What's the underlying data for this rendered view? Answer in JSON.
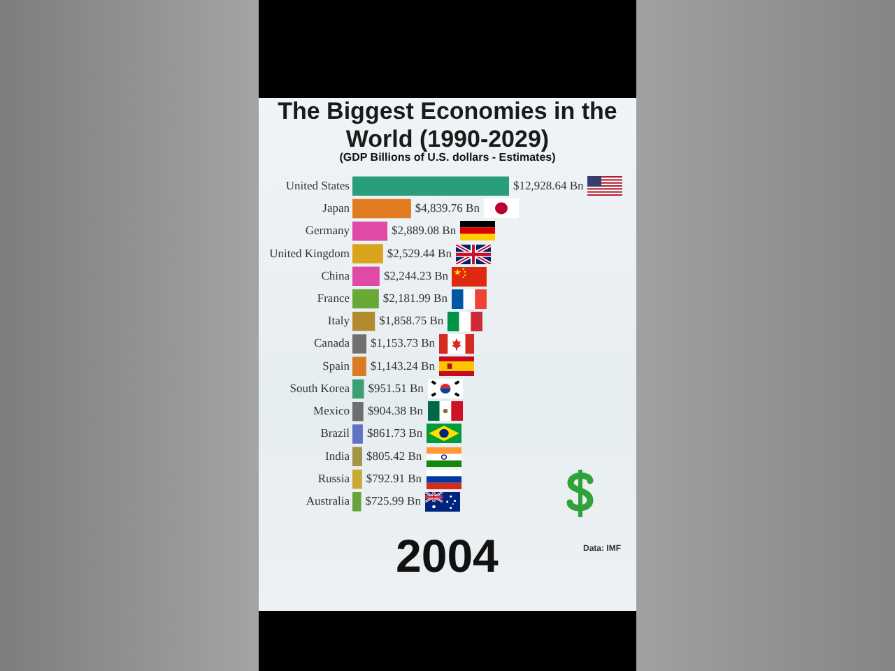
{
  "chart_data": {
    "type": "bar",
    "orientation": "horizontal",
    "title": "The Biggest Economies in the World (1990-2029)",
    "subtitle": "(GDP Billions of U.S. dollars - Estimates)",
    "categories": [
      "United States",
      "Japan",
      "Germany",
      "United Kingdom",
      "China",
      "France",
      "Italy",
      "Canada",
      "Spain",
      "South Korea",
      "Mexico",
      "Brazil",
      "India",
      "Russia",
      "Australia"
    ],
    "values": [
      12928.64,
      4839.76,
      2889.08,
      2529.44,
      2244.23,
      2181.99,
      1858.75,
      1153.73,
      1143.24,
      951.51,
      904.38,
      861.73,
      805.42,
      792.91,
      725.99
    ],
    "colors": [
      "#2a9d7c",
      "#e07b22",
      "#e04aa6",
      "#d9a41c",
      "#e04aa6",
      "#6aa836",
      "#b08a2c",
      "#707070",
      "#d97a24",
      "#3aa072",
      "#6e6e6e",
      "#6272c2",
      "#a49446",
      "#c9a934",
      "#6aa23e"
    ],
    "value_labels": [
      "$12,928.64 Bn",
      "$4,839.76 Bn",
      "$2,889.08 Bn",
      "$2,529.44 Bn",
      "$2,244.23 Bn",
      "$2,181.99 Bn",
      "$1,858.75 Bn",
      "$1,153.73 Bn",
      "$1,143.24 Bn",
      "$951.51 Bn",
      "$904.38 Bn",
      "$861.73 Bn",
      "$805.42 Bn",
      "$792.91 Bn",
      "$725.99 Bn"
    ],
    "annotations": [
      "2004",
      "Data: IMF"
    ]
  }
}
